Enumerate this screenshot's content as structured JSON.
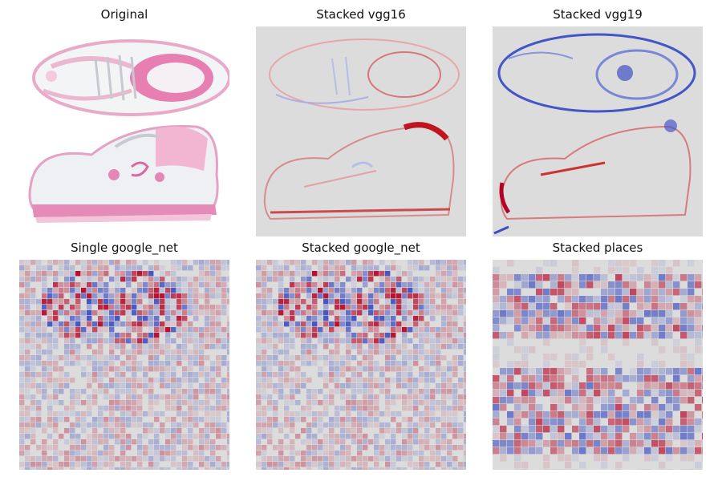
{
  "panels": [
    {
      "title": "Original"
    },
    {
      "title": "Stacked vgg16"
    },
    {
      "title": "Stacked vgg19"
    },
    {
      "title": "Single google_net"
    },
    {
      "title": "Stacked google_net"
    },
    {
      "title": "Stacked places"
    }
  ],
  "colors": {
    "neutral": "#dcdcdc",
    "positive": "#b40426",
    "negative": "#3b4cc0",
    "shoe_pink": "#e06aa6",
    "shoe_white": "#eef0f3"
  }
}
